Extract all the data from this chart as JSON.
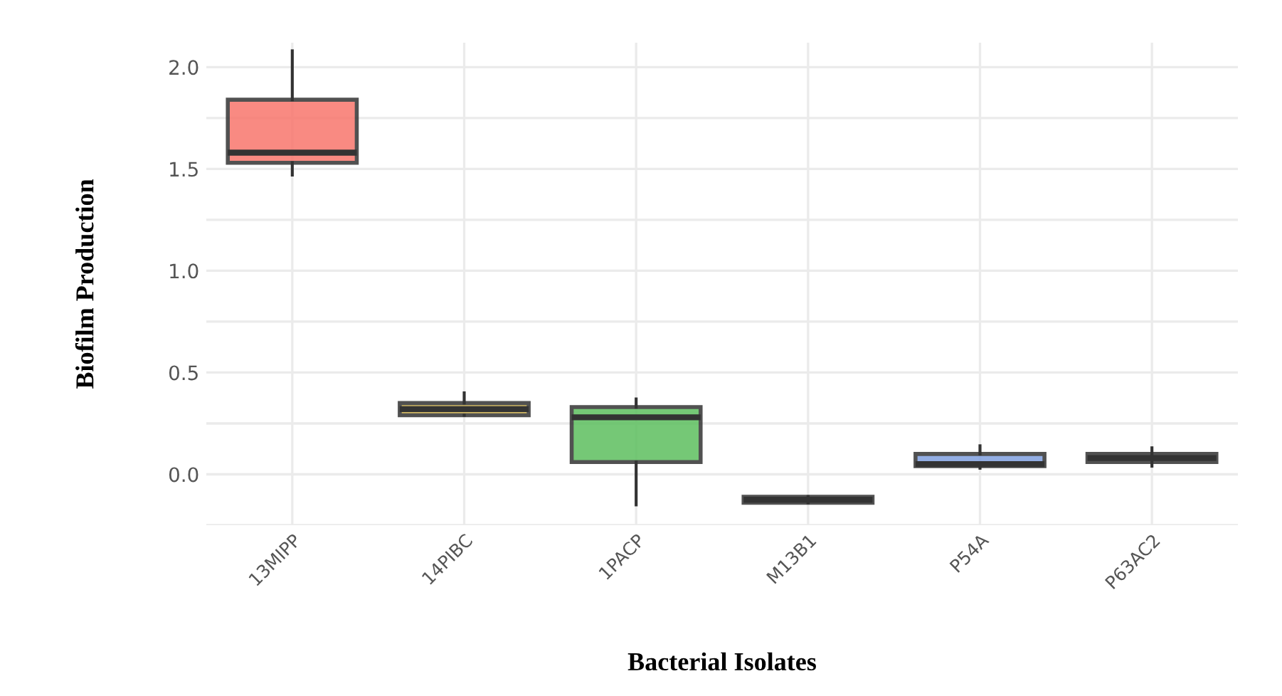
{
  "chart_data": {
    "type": "box",
    "xlabel": "Bacterial Isolates",
    "ylabel": "Biofilm Production",
    "categories": [
      "13MIPP",
      "14PIBC",
      "1PACP",
      "M13B1",
      "P54A",
      "P63AC2"
    ],
    "colors": [
      "#f8766d",
      "#c9ab4a",
      "#5dbf5f",
      "#2b2b2b",
      "#7f9fdf",
      "#a3727f"
    ],
    "boxes": [
      {
        "low": 1.47,
        "q1": 1.53,
        "median": 1.58,
        "q3": 1.84,
        "high": 2.08
      },
      {
        "low": 0.29,
        "q1": 0.29,
        "median": 0.32,
        "q3": 0.35,
        "high": 0.4
      },
      {
        "low": -0.15,
        "q1": 0.06,
        "median": 0.28,
        "q3": 0.33,
        "high": 0.37
      },
      {
        "low": -0.14,
        "q1": -0.14,
        "median": -0.125,
        "q3": -0.11,
        "high": -0.11
      },
      {
        "low": 0.03,
        "q1": 0.04,
        "median": 0.05,
        "q3": 0.1,
        "high": 0.14
      },
      {
        "low": 0.04,
        "q1": 0.06,
        "median": 0.08,
        "q3": 0.1,
        "high": 0.13
      }
    ],
    "ylim": [
      -0.25,
      2.12
    ],
    "yticks": [
      {
        "value": -0.25,
        "label": null
      },
      {
        "value": 0.0,
        "label": "0.0"
      },
      {
        "value": 0.25,
        "label": null
      },
      {
        "value": 0.5,
        "label": "0.5"
      },
      {
        "value": 0.75,
        "label": null
      },
      {
        "value": 1.0,
        "label": "1.0"
      },
      {
        "value": 1.25,
        "label": null
      },
      {
        "value": 1.5,
        "label": "1.5"
      },
      {
        "value": 1.75,
        "label": null
      },
      {
        "value": 2.0,
        "label": "2.0"
      }
    ],
    "grid": true
  }
}
